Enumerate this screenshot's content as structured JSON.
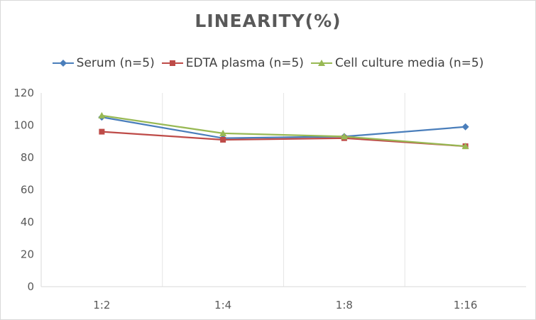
{
  "chart_data": {
    "type": "line",
    "title": "LINEARITY(%)",
    "xlabel": "",
    "ylabel": "",
    "categories": [
      "1:2",
      "1:4",
      "1:8",
      "1:16"
    ],
    "ylim": [
      0,
      120
    ],
    "yticks": [
      0,
      20,
      40,
      60,
      80,
      100,
      120
    ],
    "grid": "vertical",
    "legend_position": "top",
    "series": [
      {
        "name": "Serum (n=5)",
        "values": [
          105,
          92,
          93,
          99
        ],
        "color": "#4a7ebb",
        "marker": "diamond"
      },
      {
        "name": "EDTA plasma (n=5)",
        "values": [
          96,
          91,
          92,
          87
        ],
        "color": "#be4b48",
        "marker": "square"
      },
      {
        "name": "Cell culture media (n=5)",
        "values": [
          106,
          95,
          93,
          87
        ],
        "color": "#98b954",
        "marker": "triangle"
      }
    ]
  }
}
